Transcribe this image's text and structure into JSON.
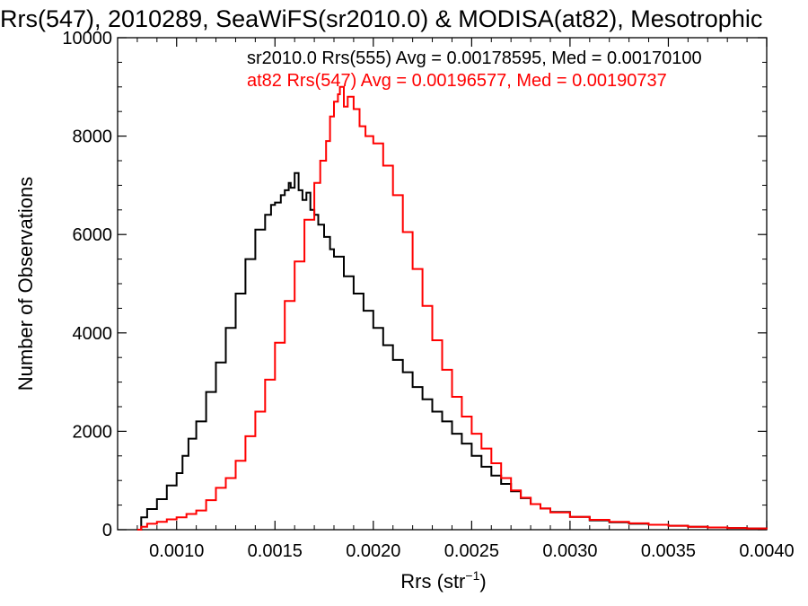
{
  "chart_data": {
    "type": "line",
    "title": "Rrs(547), 2010289, SeaWiFS(sr2010.0) & MODISA(at82), Mesotrophic",
    "xlabel_main": "Rrs (str",
    "xlabel_sup": "−1",
    "xlabel_close": ")",
    "ylabel": "Number of Observations",
    "xlim": [
      0.0007,
      0.004
    ],
    "ylim": [
      0,
      10000
    ],
    "xticks": [
      0.001,
      0.0015,
      0.002,
      0.0025,
      0.003,
      0.0035,
      0.004
    ],
    "xtick_labels": [
      "0.0010",
      "0.0015",
      "0.0020",
      "0.0025",
      "0.0030",
      "0.0035",
      "0.0040"
    ],
    "yticks": [
      0,
      2000,
      4000,
      6000,
      8000,
      10000
    ],
    "ytick_labels": [
      "0",
      "2000",
      "4000",
      "6000",
      "8000",
      "10000"
    ],
    "step_style": "histogram",
    "series": [
      {
        "name": "sr2010.0 Rrs(555)",
        "legend": "sr2010.0 Rrs(555) Avg = 0.00178595, Med = 0.00170100",
        "color": "#000000",
        "points": [
          [
            0.0008,
            0
          ],
          [
            0.00082,
            250
          ],
          [
            0.00085,
            420
          ],
          [
            0.0009,
            620
          ],
          [
            0.00095,
            900
          ],
          [
            0.001,
            1150
          ],
          [
            0.00103,
            1500
          ],
          [
            0.00106,
            1850
          ],
          [
            0.0011,
            2200
          ],
          [
            0.00115,
            2800
          ],
          [
            0.0012,
            3400
          ],
          [
            0.00125,
            4100
          ],
          [
            0.0013,
            4800
          ],
          [
            0.00135,
            5500
          ],
          [
            0.0014,
            6100
          ],
          [
            0.00145,
            6400
          ],
          [
            0.00148,
            6600
          ],
          [
            0.0015,
            6650
          ],
          [
            0.00153,
            6800
          ],
          [
            0.00155,
            6900
          ],
          [
            0.00157,
            7050
          ],
          [
            0.00158,
            6950
          ],
          [
            0.0016,
            7250
          ],
          [
            0.00162,
            6900
          ],
          [
            0.00164,
            6700
          ],
          [
            0.00166,
            6850
          ],
          [
            0.00168,
            6500
          ],
          [
            0.0017,
            6400
          ],
          [
            0.00172,
            6200
          ],
          [
            0.00175,
            5950
          ],
          [
            0.00178,
            5700
          ],
          [
            0.0018,
            5550
          ],
          [
            0.00185,
            5150
          ],
          [
            0.0019,
            4800
          ],
          [
            0.00195,
            4450
          ],
          [
            0.002,
            4100
          ],
          [
            0.00205,
            3750
          ],
          [
            0.0021,
            3450
          ],
          [
            0.00215,
            3200
          ],
          [
            0.0022,
            2900
          ],
          [
            0.00225,
            2650
          ],
          [
            0.0023,
            2400
          ],
          [
            0.00235,
            2200
          ],
          [
            0.0024,
            1950
          ],
          [
            0.00245,
            1750
          ],
          [
            0.0025,
            1500
          ],
          [
            0.00255,
            1280
          ],
          [
            0.0026,
            1100
          ],
          [
            0.00265,
            930
          ],
          [
            0.0027,
            780
          ],
          [
            0.00275,
            640
          ],
          [
            0.0028,
            520
          ],
          [
            0.00285,
            430
          ],
          [
            0.0029,
            360
          ],
          [
            0.003,
            260
          ],
          [
            0.0031,
            190
          ],
          [
            0.0032,
            150
          ],
          [
            0.0033,
            120
          ],
          [
            0.0034,
            100
          ],
          [
            0.0035,
            80
          ],
          [
            0.0036,
            60
          ],
          [
            0.0037,
            45
          ],
          [
            0.0038,
            35
          ],
          [
            0.0039,
            25
          ],
          [
            0.004,
            15
          ]
        ]
      },
      {
        "name": "at82 Rrs(547)",
        "legend": "at82 Rrs(547) Avg = 0.00196577, Med = 0.00190737",
        "color": "#ff0000",
        "points": [
          [
            0.0008,
            0
          ],
          [
            0.00082,
            60
          ],
          [
            0.00085,
            120
          ],
          [
            0.0009,
            160
          ],
          [
            0.00095,
            210
          ],
          [
            0.001,
            250
          ],
          [
            0.00105,
            320
          ],
          [
            0.0011,
            390
          ],
          [
            0.00115,
            600
          ],
          [
            0.0012,
            850
          ],
          [
            0.00125,
            1050
          ],
          [
            0.0013,
            1400
          ],
          [
            0.00135,
            1900
          ],
          [
            0.0014,
            2400
          ],
          [
            0.00145,
            3050
          ],
          [
            0.0015,
            3800
          ],
          [
            0.00155,
            4650
          ],
          [
            0.0016,
            5450
          ],
          [
            0.00165,
            6300
          ],
          [
            0.0017,
            7050
          ],
          [
            0.00173,
            7500
          ],
          [
            0.00176,
            7900
          ],
          [
            0.00178,
            8400
          ],
          [
            0.0018,
            8700
          ],
          [
            0.00182,
            8850
          ],
          [
            0.00183,
            9000
          ],
          [
            0.00185,
            8600
          ],
          [
            0.00187,
            8800
          ],
          [
            0.0019,
            8550
          ],
          [
            0.00193,
            8200
          ],
          [
            0.00196,
            8000
          ],
          [
            0.002,
            7850
          ],
          [
            0.00205,
            7400
          ],
          [
            0.0021,
            6800
          ],
          [
            0.00215,
            6050
          ],
          [
            0.0022,
            5300
          ],
          [
            0.00225,
            4550
          ],
          [
            0.0023,
            3850
          ],
          [
            0.00235,
            3250
          ],
          [
            0.0024,
            2700
          ],
          [
            0.00245,
            2300
          ],
          [
            0.0025,
            1950
          ],
          [
            0.00255,
            1650
          ],
          [
            0.0026,
            1350
          ],
          [
            0.00265,
            1050
          ],
          [
            0.0027,
            800
          ],
          [
            0.00275,
            650
          ],
          [
            0.0028,
            520
          ],
          [
            0.00285,
            430
          ],
          [
            0.0029,
            350
          ],
          [
            0.003,
            260
          ],
          [
            0.0031,
            200
          ],
          [
            0.0032,
            160
          ],
          [
            0.0033,
            130
          ],
          [
            0.0034,
            100
          ],
          [
            0.0035,
            80
          ],
          [
            0.0036,
            60
          ],
          [
            0.0037,
            45
          ],
          [
            0.0038,
            35
          ],
          [
            0.0039,
            25
          ],
          [
            0.004,
            15
          ]
        ]
      }
    ]
  }
}
